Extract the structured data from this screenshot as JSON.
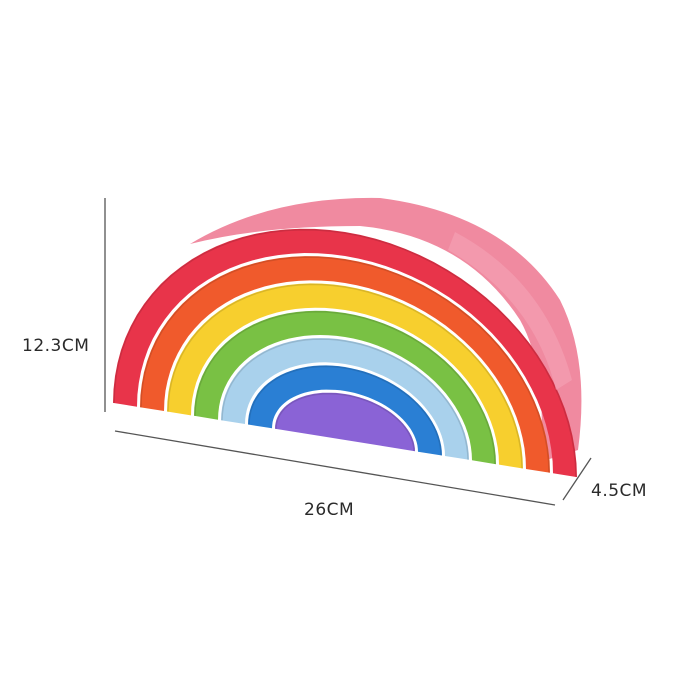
{
  "product": {
    "name_icon": "rainbow-stacking-blocks-icon",
    "arch_colors": [
      "#e8344a",
      "#f05a2c",
      "#f7cf2e",
      "#79c144",
      "#a9d1ec",
      "#2a7fd4",
      "#8a63d6"
    ],
    "arch_count": 7
  },
  "dimensions": {
    "height": "12.3CM",
    "width": "26CM",
    "depth": "4.5CM"
  }
}
